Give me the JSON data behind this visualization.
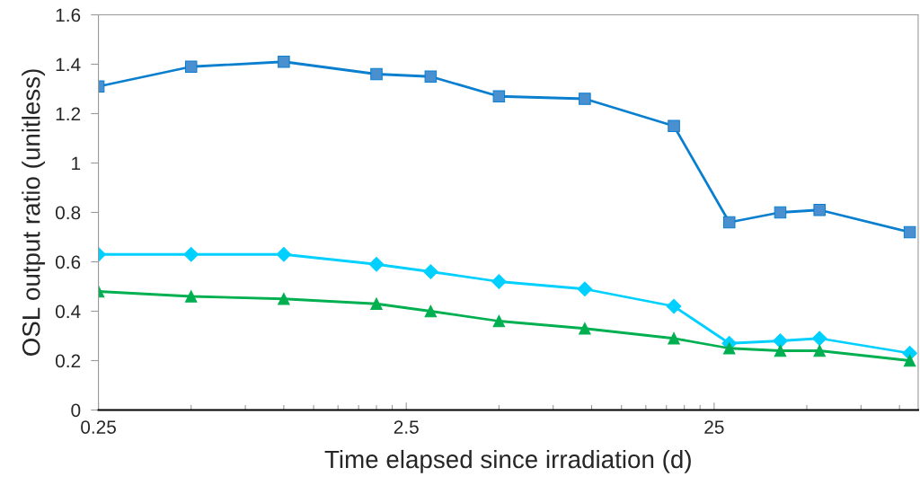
{
  "chart_data": {
    "type": "line",
    "xlabel": "Time elapsed since irradiation (d)",
    "ylabel": "OSL output ratio (unitless)",
    "x": [
      0.25,
      0.5,
      1,
      2,
      3,
      5,
      9.5,
      18.5,
      28,
      41,
      55,
      108
    ],
    "series": [
      {
        "color": "#0a7fcf",
        "marker": "square",
        "values": [
          1.31,
          1.39,
          1.41,
          1.36,
          1.35,
          1.27,
          1.26,
          1.15,
          0.76,
          0.8,
          0.81,
          0.72
        ]
      },
      {
        "color": "#00d0ff",
        "marker": "diamond",
        "values": [
          0.63,
          0.63,
          0.63,
          0.59,
          0.56,
          0.52,
          0.49,
          0.42,
          0.27,
          0.28,
          0.29,
          0.23
        ]
      },
      {
        "color": "#00b050",
        "marker": "triangle",
        "values": [
          0.48,
          0.46,
          0.45,
          0.43,
          0.4,
          0.36,
          0.33,
          0.29,
          0.25,
          0.24,
          0.24,
          0.2
        ]
      }
    ],
    "log": "x",
    "xlim": [
      0.25,
      115
    ],
    "ylim": [
      0,
      1.6
    ],
    "xticks": [
      0.25,
      {
        "value": 0.5,
        "label": null
      },
      {
        "value": 0.75,
        "label": null
      },
      {
        "value": 1,
        "label": null
      },
      {
        "value": 1.25,
        "label": null
      },
      {
        "value": 1.5,
        "label": null
      },
      {
        "value": 1.75,
        "label": null
      },
      {
        "value": 2,
        "label": null
      },
      {
        "value": 2.25,
        "label": null
      },
      2.5,
      {
        "value": 5,
        "label": null
      },
      {
        "value": 7.5,
        "label": null
      },
      {
        "value": 10,
        "label": null
      },
      {
        "value": 12.5,
        "label": null
      },
      {
        "value": 15,
        "label": null
      },
      {
        "value": 17.5,
        "label": null
      },
      {
        "value": 20,
        "label": null
      },
      {
        "value": 22.5,
        "label": null
      },
      25,
      {
        "value": 50,
        "label": null
      },
      {
        "value": 75,
        "label": null
      },
      {
        "value": 100,
        "label": null
      }
    ],
    "yticks": [
      0,
      0.2,
      0.4,
      0.6,
      0.8,
      1,
      1.2,
      1.4,
      1.6
    ],
    "grid": false,
    "legend": false,
    "line_style": "solid"
  }
}
